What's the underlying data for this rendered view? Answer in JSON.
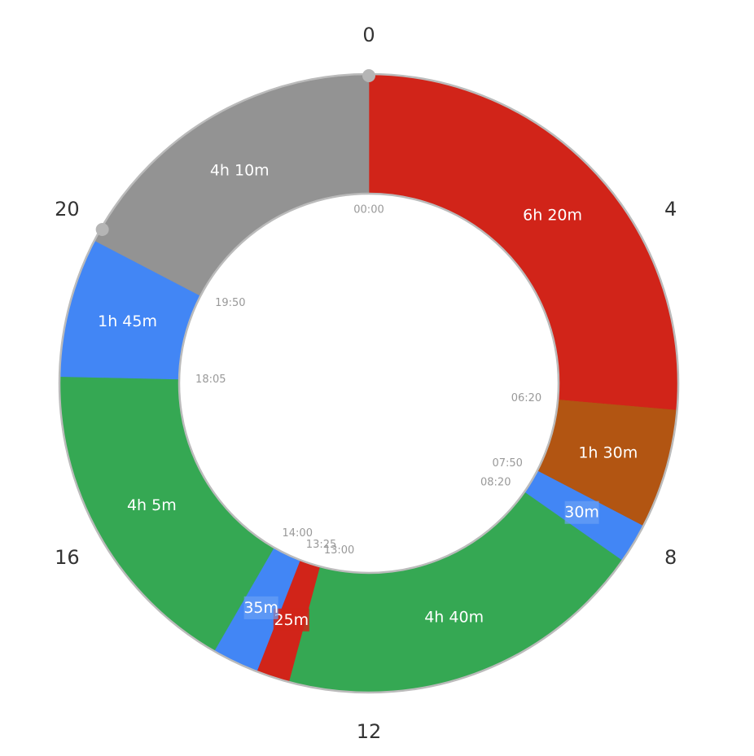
{
  "colors": {
    "sleep": "#d12419",
    "commute": "#4286f5",
    "work": "#35a853",
    "meal": "#b25512",
    "leisure": "#939393",
    "ring": "#bbbbbb"
  },
  "chart_data": {
    "type": "donut",
    "title": "",
    "unit": "hours",
    "clock_hours": 24,
    "hour_ticks": [
      "0",
      "4",
      "8",
      "12",
      "16",
      "20"
    ],
    "segments": [
      {
        "start": "00:00",
        "end": "06:20",
        "duration": "6h 20m",
        "color": "#d12419"
      },
      {
        "start": "06:20",
        "end": "07:50",
        "duration": "1h 30m",
        "color": "#b25512"
      },
      {
        "start": "07:50",
        "end": "08:20",
        "duration": "30m",
        "color": "#4286f5"
      },
      {
        "start": "08:20",
        "end": "13:00",
        "duration": "4h 40m",
        "color": "#35a853"
      },
      {
        "start": "13:00",
        "end": "13:25",
        "duration": "25m",
        "color": "#d12419"
      },
      {
        "start": "13:25",
        "end": "14:00",
        "duration": "35m",
        "color": "#4286f5"
      },
      {
        "start": "14:00",
        "end": "18:05",
        "duration": "4h 5m",
        "color": "#35a853"
      },
      {
        "start": "18:05",
        "end": "19:50",
        "duration": "1h 45m",
        "color": "#4286f5"
      },
      {
        "start": "19:50",
        "end": "24:00",
        "duration": "4h 10m",
        "color": "#939393"
      }
    ],
    "markers": [
      "00:00",
      "20:00"
    ]
  }
}
